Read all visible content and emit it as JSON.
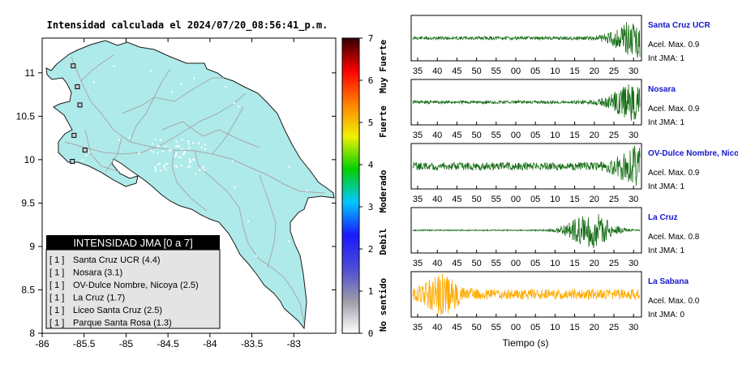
{
  "map_title": "Intensidad calculada el 2024/07/20_08:56:41_p.m.",
  "colors": {
    "land": "#aeeaea",
    "roads": "#a8a8a8",
    "trace_green": "#156d15",
    "trace_orange": "#ffaa00",
    "station_name": "#1515cc",
    "legend_header_bg": "#000000",
    "legend_box_bg": "#e4e4e4"
  },
  "legend": {
    "header": "INTENSIDAD JMA [0 a 7]",
    "items": [
      {
        "code": "[ 1 ]",
        "label": "Santa Cruz UCR (4.4)"
      },
      {
        "code": "[ 1 ]",
        "label": "Nosara (3.1)"
      },
      {
        "code": "[ 1 ]",
        "label": "OV-Dulce Nombre, Nicoya (2.5)"
      },
      {
        "code": "[ 1 ]",
        "label": "La Cruz (1.7)"
      },
      {
        "code": "[ 1 ]",
        "label": "Liceo Santa Cruz (2.5)"
      },
      {
        "code": "[ 1 ]",
        "label": "Parque Santa Rosa (1.3)"
      }
    ]
  },
  "colorbar": {
    "ticks": [
      "0",
      "1",
      "2",
      "3",
      "4",
      "5",
      "6",
      "7"
    ],
    "labels": [
      "No sentido",
      "Debil",
      "Moderado",
      "Fuerte",
      "Muy Fuerte"
    ],
    "gradient": [
      "#ffffff",
      "#9a9aa8",
      "#4a4ad8",
      "#1a1aff",
      "#00c8ff",
      "#00d000",
      "#f0f000",
      "#ff8000",
      "#ff0000",
      "#300000"
    ]
  },
  "chart_data": [
    {
      "type": "map",
      "title": "Intensidad calculada el 2024/07/20_08:56:41_p.m.",
      "xlim": [
        -86,
        -82.5
      ],
      "ylim": [
        8,
        11.4
      ],
      "xticks": [
        -86,
        -85.5,
        -85,
        -84.5,
        -84,
        -83.5,
        -83
      ],
      "xtick_labels": [
        "-86",
        "-85.5",
        "-85",
        "-84.5",
        "-84",
        "-83.5",
        "-83"
      ],
      "yticks": [
        8,
        8.5,
        9,
        9.5,
        10,
        10.5,
        11
      ],
      "ytick_labels": [
        "8",
        "8.5",
        "9",
        "9.5",
        "10",
        "10.5",
        "11"
      ],
      "stations": [
        {
          "lon": -85.63,
          "lat": 11.08
        },
        {
          "lon": -85.58,
          "lat": 10.84
        },
        {
          "lon": -85.55,
          "lat": 10.63
        },
        {
          "lon": -85.62,
          "lat": 10.28
        },
        {
          "lon": -85.49,
          "lat": 10.11
        },
        {
          "lon": -85.64,
          "lat": 9.98
        }
      ]
    },
    {
      "type": "line",
      "panels": [
        {
          "station": "Santa Cruz UCR",
          "acel_label": "Acel. Max. 0.9",
          "int_label": "Int JMA: 1",
          "color": "#156d15",
          "base_amp": 0.08,
          "burst_center": 0.98,
          "burst_width": 0.1,
          "burst_amp": 0.9
        },
        {
          "station": "Nosara",
          "acel_label": "Acel. Max. 0.9",
          "int_label": "Int JMA: 1",
          "color": "#156d15",
          "base_amp": 0.08,
          "burst_center": 0.98,
          "burst_width": 0.1,
          "burst_amp": 0.9
        },
        {
          "station": "OV-Dulce Nombre, Nicoya",
          "acel_label": "Acel. Max. 0.9",
          "int_label": "Int JMA: 1",
          "color": "#156d15",
          "base_amp": 0.18,
          "burst_center": 0.98,
          "burst_width": 0.09,
          "burst_amp": 0.8
        },
        {
          "station": "La Cruz",
          "acel_label": "Acel. Max. 0.8",
          "int_label": "Int JMA: 1",
          "color": "#156d15",
          "base_amp": 0.03,
          "burst_center": 0.78,
          "burst_width": 0.1,
          "burst_amp": 0.85
        },
        {
          "station": "La Sabana",
          "acel_label": "Acel. Max. 0.0",
          "int_label": "Int JMA: 0",
          "color": "#ffaa00",
          "base_amp": 0.25,
          "burst_center": 0.13,
          "burst_width": 0.08,
          "burst_amp": 0.75
        }
      ],
      "x_tick_labels": [
        "35",
        "40",
        "45",
        "50",
        "55",
        "00",
        "05",
        "10",
        "15",
        "20",
        "25",
        "30"
      ],
      "xlabel": "Tiempo (s)"
    }
  ]
}
